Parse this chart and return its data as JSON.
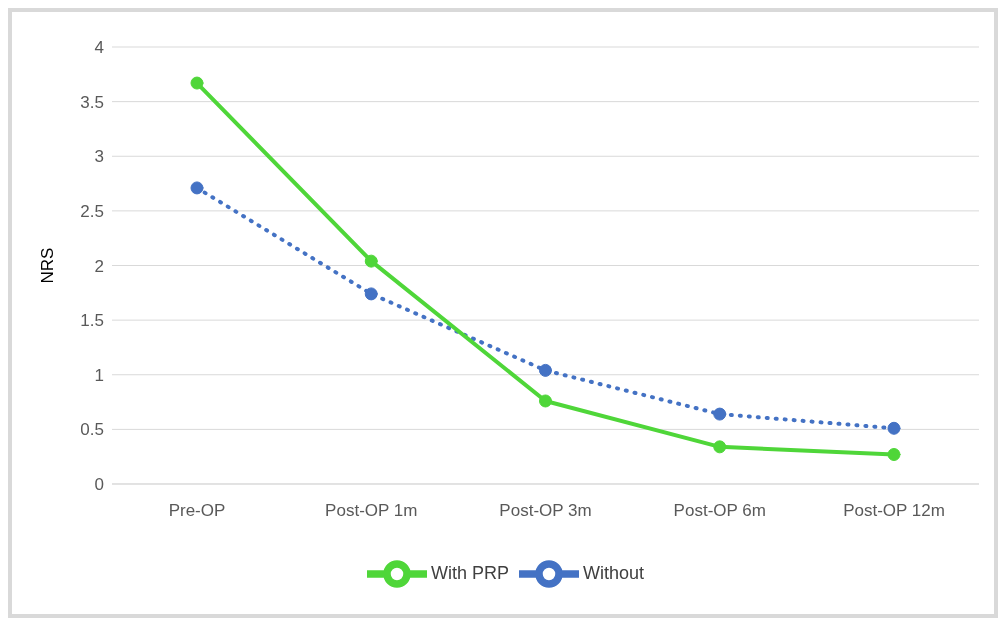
{
  "chart_data": {
    "type": "line",
    "ylabel": "NRS",
    "categories": [
      "Pre-OP",
      "Post-OP 1m",
      "Post-OP 3m",
      "Post-OP 6m",
      "Post-OP 12m"
    ],
    "series": [
      {
        "name": "Without",
        "color": "#4472c4",
        "values": [
          2.71,
          1.74,
          1.04,
          0.64,
          0.51
        ],
        "line_style": "dotted",
        "marker": "circle"
      },
      {
        "name": "With PRP",
        "color": "#4fd639",
        "values": [
          3.67,
          2.04,
          0.76,
          0.34,
          0.27
        ],
        "line_style": "solid",
        "marker": "circle"
      }
    ],
    "ylim": [
      0,
      4
    ],
    "yticks": [
      0,
      0.5,
      1,
      1.5,
      2,
      2.5,
      3,
      3.5,
      4
    ],
    "grid": "y",
    "legend": "bottom"
  }
}
